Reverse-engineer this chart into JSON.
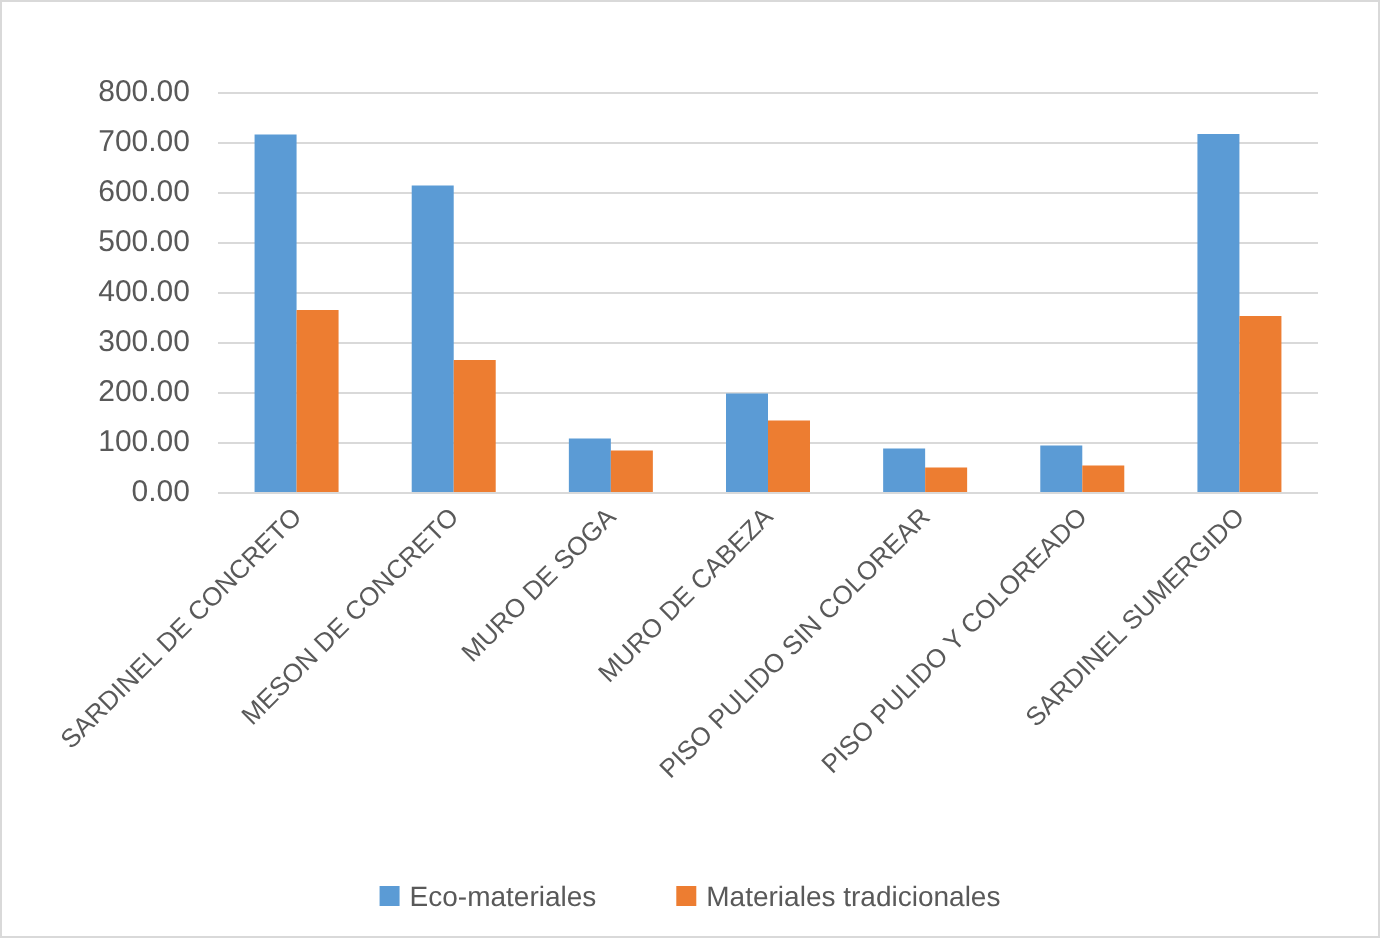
{
  "chart_data": {
    "type": "bar",
    "categories": [
      "SARDINEL DE CONCRETO",
      "MESON DE CONCRETO",
      "MURO DE SOGA",
      "MURO DE CABEZA",
      "PISO PULIDO SIN COLOREAR",
      "PISO PULIDO Y COLOREADO",
      "SARDINEL SUMERGIDO"
    ],
    "series": [
      {
        "name": "Eco-materiales",
        "color": "#5b9bd5",
        "values": [
          715,
          613,
          107,
          197,
          87,
          93,
          716
        ]
      },
      {
        "name": "Materiales tradicionales",
        "color": "#ed7d31",
        "values": [
          364,
          264,
          83,
          143,
          49,
          53,
          352
        ]
      }
    ],
    "ylim": [
      0,
      800
    ],
    "yticks": [
      {
        "value": 0,
        "label": "0.00"
      },
      {
        "value": 100,
        "label": "100.00"
      },
      {
        "value": 200,
        "label": "200.00"
      },
      {
        "value": 300,
        "label": "300.00"
      },
      {
        "value": 400,
        "label": "400.00"
      },
      {
        "value": 500,
        "label": "500.00"
      },
      {
        "value": 600,
        "label": "600.00"
      },
      {
        "value": 700,
        "label": "700.00"
      },
      {
        "value": 800,
        "label": "800.00"
      }
    ],
    "grid": "y",
    "legend": "bottom"
  }
}
